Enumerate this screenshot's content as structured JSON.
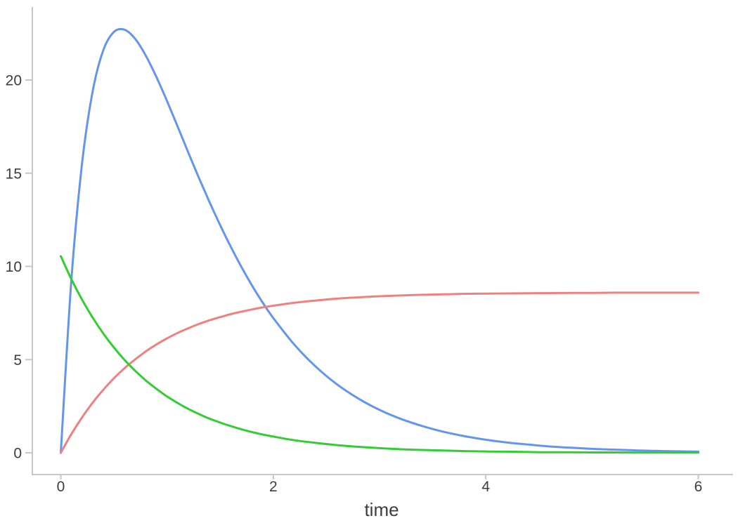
{
  "chart_data": {
    "type": "line",
    "title": "",
    "xlabel": "time",
    "ylabel": "",
    "xlim": [
      0,
      6
    ],
    "ylim": [
      0,
      23
    ],
    "x_ticks": [
      0,
      2,
      4,
      6
    ],
    "y_ticks": [
      0,
      5,
      10,
      15,
      20
    ],
    "grid": false,
    "legend": false,
    "background_color": "#ffffff",
    "axis_color": "#c7c7c7",
    "tick_label_color": "#3d3d3d",
    "x": [
      0.0,
      0.1,
      0.2,
      0.3,
      0.4,
      0.5,
      0.6,
      0.7,
      0.8,
      0.9,
      1.0,
      1.1,
      1.2,
      1.3,
      1.4,
      1.5,
      1.6,
      1.7,
      1.8,
      1.9,
      2.0,
      2.2,
      2.4,
      2.6,
      2.8,
      3.0,
      3.2,
      3.4,
      3.6,
      3.8,
      4.0,
      4.2,
      4.4,
      4.6,
      4.8,
      5.0,
      5.2,
      5.4,
      5.6,
      5.8,
      6.0
    ],
    "series": [
      {
        "name": "blue-curve",
        "color": "#6495ED",
        "peak": {
          "x": 0.57,
          "y": 22.75
        },
        "values": [
          0.0,
          9.31,
          15.51,
          19.4,
          21.6,
          22.58,
          22.7,
          22.21,
          21.31,
          20.16,
          18.87,
          17.5,
          16.11,
          14.75,
          13.45,
          12.21,
          11.05,
          9.97,
          8.97,
          8.06,
          7.23,
          5.79,
          4.62,
          3.67,
          2.91,
          2.3,
          1.82,
          1.44,
          1.13,
          0.89,
          0.7,
          0.55,
          0.44,
          0.34,
          0.27,
          0.21,
          0.17,
          0.13,
          0.1,
          0.08,
          0.06
        ]
      },
      {
        "name": "red-curve",
        "color": "#F08080",
        "asymptote": 8.6,
        "values": [
          0.0,
          1.01,
          1.9,
          2.69,
          3.38,
          4.0,
          4.54,
          5.01,
          5.44,
          5.81,
          6.14,
          6.43,
          6.68,
          6.91,
          7.11,
          7.28,
          7.44,
          7.57,
          7.69,
          7.8,
          7.89,
          8.05,
          8.17,
          8.27,
          8.34,
          8.4,
          8.44,
          8.48,
          8.5,
          8.53,
          8.54,
          8.55,
          8.56,
          8.57,
          8.58,
          8.58,
          8.59,
          8.59,
          8.59,
          8.59,
          8.59
        ]
      },
      {
        "name": "green-curve",
        "color": "#32CD32",
        "start": 10.55,
        "values": [
          10.55,
          9.31,
          8.22,
          7.25,
          6.4,
          5.65,
          4.98,
          4.4,
          3.88,
          3.43,
          3.02,
          2.67,
          2.35,
          2.08,
          1.83,
          1.62,
          1.43,
          1.26,
          1.11,
          0.98,
          0.87,
          0.67,
          0.53,
          0.41,
          0.32,
          0.25,
          0.19,
          0.15,
          0.12,
          0.09,
          0.07,
          0.06,
          0.04,
          0.03,
          0.03,
          0.02,
          0.02,
          0.01,
          0.01,
          0.01,
          0.01
        ]
      }
    ]
  }
}
